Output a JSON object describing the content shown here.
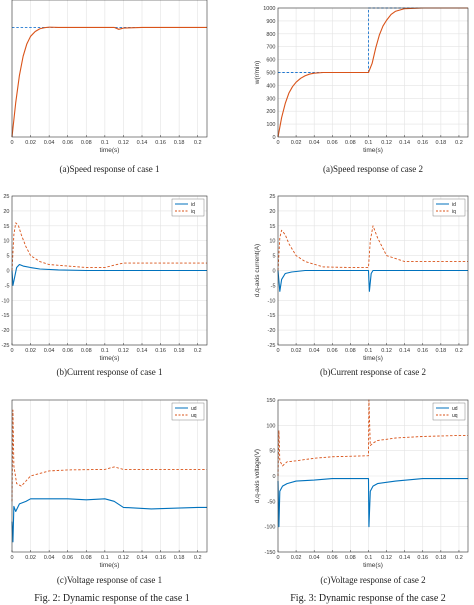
{
  "figure_captions": [
    "Fig. 2: Dynamic response of the case 1",
    "Fig. 3: Dynamic response of the case 2"
  ],
  "colors": {
    "blue": "#0072bd",
    "orange": "#d95319",
    "reference": "#1f77d0",
    "grid": "#e3e3e3",
    "axis": "#333333"
  },
  "chart_data": [
    {
      "id": "a1",
      "type": "line",
      "caption": "(a)Speed response of case 1",
      "xlabel": "time(s)",
      "ylabel": "",
      "xlim": [
        0,
        0.21
      ],
      "ylim": [
        0,
        1000
      ],
      "xticks": [
        0,
        0.02,
        0.04,
        0.06,
        0.08,
        0.1,
        0.12,
        0.14,
        0.16,
        0.18,
        0.2
      ],
      "yticks": [],
      "grid": true,
      "legend": null,
      "series": [
        {
          "style": "reference",
          "color": "#1f77d0",
          "dashed": true,
          "x": [
            0,
            0.21
          ],
          "y": [
            800,
            800
          ]
        },
        {
          "style": "response",
          "color": "#d95319",
          "dashed": false,
          "x": [
            0,
            0.004,
            0.008,
            0.012,
            0.016,
            0.02,
            0.025,
            0.03,
            0.035,
            0.04,
            0.05,
            0.06,
            0.08,
            0.1,
            0.11,
            0.115,
            0.12,
            0.14,
            0.16,
            0.18,
            0.2,
            0.21
          ],
          "y": [
            0,
            250,
            450,
            590,
            680,
            735,
            770,
            790,
            798,
            802,
            800,
            800,
            800,
            800,
            800,
            786,
            795,
            800,
            800,
            800,
            800,
            800
          ]
        }
      ]
    },
    {
      "id": "a2",
      "type": "line",
      "caption": "(a)Speed response of case 2",
      "xlabel": "time(s)",
      "ylabel": "w(r/min)",
      "xlim": [
        0,
        0.21
      ],
      "ylim": [
        0,
        1000
      ],
      "xticks": [
        0,
        0.02,
        0.04,
        0.06,
        0.08,
        0.1,
        0.12,
        0.14,
        0.16,
        0.18,
        0.2
      ],
      "yticks": [
        0,
        100,
        200,
        300,
        400,
        500,
        600,
        700,
        800,
        900,
        1000
      ],
      "grid": true,
      "legend": null,
      "series": [
        {
          "style": "reference",
          "color": "#1f77d0",
          "dashed": true,
          "x": [
            0,
            0.1,
            0.1,
            0.21
          ],
          "y": [
            500,
            500,
            1000,
            1000
          ]
        },
        {
          "style": "response",
          "color": "#d95319",
          "dashed": false,
          "x": [
            0,
            0.004,
            0.008,
            0.012,
            0.016,
            0.02,
            0.025,
            0.03,
            0.035,
            0.04,
            0.05,
            0.06,
            0.08,
            0.1,
            0.104,
            0.108,
            0.112,
            0.116,
            0.12,
            0.125,
            0.13,
            0.14,
            0.16,
            0.18,
            0.2,
            0.21
          ],
          "y": [
            0,
            150,
            260,
            340,
            390,
            425,
            455,
            475,
            488,
            495,
            500,
            500,
            500,
            500,
            570,
            690,
            790,
            860,
            905,
            950,
            975,
            995,
            1000,
            1000,
            1000,
            1000
          ]
        }
      ]
    },
    {
      "id": "b1",
      "type": "line",
      "caption": "(b)Current response of case 1",
      "xlabel": "time(s)",
      "ylabel": "",
      "xlim": [
        0,
        0.21
      ],
      "ylim": [
        -25,
        25
      ],
      "xticks": [
        0,
        0.02,
        0.04,
        0.06,
        0.08,
        0.1,
        0.12,
        0.14,
        0.16,
        0.18,
        0.2
      ],
      "yticks": [
        -25,
        -20,
        -15,
        -10,
        -5,
        0,
        5,
        10,
        15,
        20,
        25
      ],
      "grid": true,
      "legend": [
        "id",
        "iq"
      ],
      "series": [
        {
          "name": "id",
          "color": "#0072bd",
          "dashed": false,
          "x": [
            0,
            0.001,
            0.003,
            0.005,
            0.008,
            0.012,
            0.02,
            0.03,
            0.05,
            0.08,
            0.1,
            0.11,
            0.15,
            0.2,
            0.21
          ],
          "y": [
            0,
            -5,
            -2,
            1,
            2,
            1.5,
            1,
            0.5,
            0.2,
            0,
            0,
            0,
            0,
            0,
            0
          ]
        },
        {
          "name": "iq",
          "color": "#d95319",
          "dashed": true,
          "x": [
            0,
            0.002,
            0.004,
            0.007,
            0.01,
            0.015,
            0.02,
            0.03,
            0.04,
            0.06,
            0.08,
            0.1,
            0.11,
            0.12,
            0.15,
            0.2,
            0.21
          ],
          "y": [
            0,
            12,
            16,
            15,
            12,
            8,
            5,
            3,
            2,
            1.5,
            1,
            1,
            1.8,
            2.5,
            2.5,
            2.5,
            2.5
          ]
        }
      ]
    },
    {
      "id": "b2",
      "type": "line",
      "caption": "(b)Current response of case 2",
      "xlabel": "time(s)",
      "ylabel": "d,q-axis current(A)",
      "xlim": [
        0,
        0.21
      ],
      "ylim": [
        -25,
        25
      ],
      "xticks": [
        0,
        0.02,
        0.04,
        0.06,
        0.08,
        0.1,
        0.12,
        0.14,
        0.16,
        0.18,
        0.2
      ],
      "yticks": [
        -25,
        -20,
        -15,
        -10,
        -5,
        0,
        5,
        10,
        15,
        20,
        25
      ],
      "grid": true,
      "legend": [
        "id",
        "iq"
      ],
      "series": [
        {
          "name": "id",
          "color": "#0072bd",
          "dashed": false,
          "x": [
            0,
            0.002,
            0.004,
            0.008,
            0.015,
            0.03,
            0.05,
            0.1,
            0.101,
            0.103,
            0.105,
            0.11,
            0.15,
            0.2,
            0.21
          ],
          "y": [
            0,
            -7,
            -3,
            -1,
            -0.5,
            0,
            0,
            0,
            -7,
            -1,
            0,
            0,
            0,
            0,
            0
          ]
        },
        {
          "name": "iq",
          "color": "#d95319",
          "dashed": true,
          "x": [
            0,
            0.002,
            0.004,
            0.008,
            0.012,
            0.02,
            0.03,
            0.05,
            0.08,
            0.1,
            0.102,
            0.105,
            0.11,
            0.12,
            0.14,
            0.21
          ],
          "y": [
            0,
            11,
            13.5,
            12,
            9,
            5,
            3,
            1.2,
            1,
            1,
            10,
            15,
            11,
            5,
            3,
            3
          ]
        }
      ]
    },
    {
      "id": "c1",
      "type": "line",
      "caption": "(c)Voltage response of case 1",
      "xlabel": "time(s)",
      "ylabel": "",
      "xlim": [
        0,
        0.21
      ],
      "ylim": [
        -100,
        200
      ],
      "xticks": [
        0,
        0.02,
        0.04,
        0.06,
        0.08,
        0.1,
        0.12,
        0.14,
        0.16,
        0.18,
        0.2
      ],
      "yticks": [],
      "grid": true,
      "legend": [
        "ud",
        "uq"
      ],
      "series": [
        {
          "name": "ud",
          "color": "#0072bd",
          "dashed": false,
          "x": [
            0,
            0.001,
            0.002,
            0.004,
            0.008,
            0.015,
            0.02,
            0.04,
            0.06,
            0.08,
            0.1,
            0.11,
            0.12,
            0.15,
            0.2,
            0.21
          ],
          "y": [
            -40,
            -80,
            -10,
            -20,
            -5,
            0,
            5,
            5,
            5,
            3,
            5,
            0,
            -12,
            -15,
            -12,
            -12
          ]
        },
        {
          "name": "uq",
          "color": "#d95319",
          "dashed": true,
          "x": [
            0,
            0.001,
            0.002,
            0.005,
            0.01,
            0.02,
            0.04,
            0.06,
            0.1,
            0.11,
            0.12,
            0.16,
            0.2,
            0.21
          ],
          "y": [
            0,
            180,
            70,
            35,
            30,
            50,
            60,
            62,
            63,
            68,
            63,
            63,
            63,
            63
          ]
        }
      ]
    },
    {
      "id": "c2",
      "type": "line",
      "caption": "(c)Voltage response of case 2",
      "xlabel": "time(s)",
      "ylabel": "d,q-axis voltage(V)",
      "xlim": [
        0,
        0.21
      ],
      "ylim": [
        -150,
        150
      ],
      "xticks": [
        0,
        0.02,
        0.04,
        0.06,
        0.08,
        0.1,
        0.12,
        0.14,
        0.16,
        0.18,
        0.2
      ],
      "yticks": [
        -150,
        -100,
        -50,
        0,
        50,
        100,
        150
      ],
      "grid": true,
      "legend": [
        "ud",
        "uq"
      ],
      "series": [
        {
          "name": "ud",
          "color": "#0072bd",
          "dashed": false,
          "x": [
            0,
            0.001,
            0.002,
            0.005,
            0.01,
            0.02,
            0.04,
            0.06,
            0.1,
            0.1005,
            0.102,
            0.105,
            0.11,
            0.13,
            0.16,
            0.2,
            0.21
          ],
          "y": [
            -10,
            -100,
            -30,
            -20,
            -15,
            -10,
            -8,
            -5,
            -5,
            -100,
            -30,
            -20,
            -15,
            -10,
            -5,
            -5,
            -5
          ]
        },
        {
          "name": "uq",
          "color": "#d95319",
          "dashed": true,
          "x": [
            0,
            0.001,
            0.002,
            0.005,
            0.01,
            0.02,
            0.04,
            0.06,
            0.1,
            0.1005,
            0.102,
            0.105,
            0.11,
            0.13,
            0.16,
            0.2,
            0.21
          ],
          "y": [
            0,
            90,
            30,
            20,
            28,
            30,
            35,
            38,
            40,
            150,
            60,
            65,
            70,
            75,
            78,
            80,
            80
          ]
        }
      ]
    }
  ]
}
